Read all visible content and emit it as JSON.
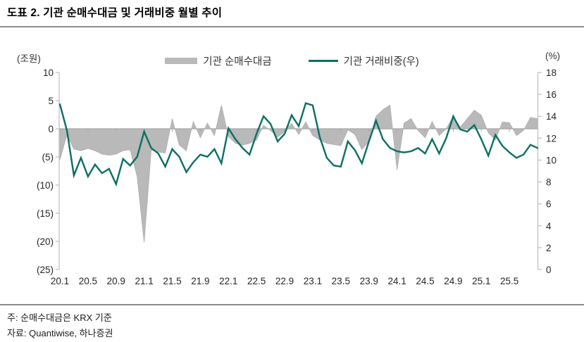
{
  "title": "도표 2. 기관 순매수대금 및 거래비중 월별 추이",
  "legend": {
    "area_label": "기관 순매수대금",
    "line_label": "기관 거래비중(우)"
  },
  "axes": {
    "left_unit": "(조원)",
    "right_unit": "(%)",
    "left_ticks": [
      "10",
      "5",
      "0",
      "(5)",
      "(10)",
      "(15)",
      "(20)",
      "(25)"
    ],
    "left_tick_values": [
      10,
      5,
      0,
      -5,
      -10,
      -15,
      -20,
      -25
    ],
    "right_ticks": [
      "18",
      "16",
      "14",
      "12",
      "10",
      "8",
      "6",
      "4",
      "2",
      "0"
    ],
    "right_tick_values": [
      18,
      16,
      14,
      12,
      10,
      8,
      6,
      4,
      2,
      0
    ],
    "x_labels": [
      {
        "text": "20.1",
        "month_index": 0
      },
      {
        "text": "20.5",
        "month_index": 4
      },
      {
        "text": "20.9",
        "month_index": 8
      },
      {
        "text": "21.1",
        "month_index": 12
      },
      {
        "text": "21.5",
        "month_index": 16
      },
      {
        "text": "21.9",
        "month_index": 20
      },
      {
        "text": "22.1",
        "month_index": 24
      },
      {
        "text": "22.5",
        "month_index": 28
      },
      {
        "text": "22.9",
        "month_index": 32
      },
      {
        "text": "23.1",
        "month_index": 36
      },
      {
        "text": "23.5",
        "month_index": 40
      },
      {
        "text": "23.9",
        "month_index": 44
      },
      {
        "text": "24.1",
        "month_index": 48
      },
      {
        "text": "24.5",
        "month_index": 52
      },
      {
        "text": "24.9",
        "month_index": 56
      },
      {
        "text": "25.1",
        "month_index": 60
      },
      {
        "text": "25.5",
        "month_index": 64
      }
    ]
  },
  "notes": {
    "line1": "주: 순매수대금은 KRX 기준",
    "line2": "자료: Quantiwise, 하나증권"
  },
  "colors": {
    "area": "#b9b9b9",
    "area_edge": "#adadad",
    "line": "#0b6f63",
    "axis": "#bfbfbf",
    "zero_line": "#a6a6a6",
    "tick_text": "#262626"
  },
  "chart_data": {
    "type": "area+line",
    "title": "기관 순매수대금 및 거래비중 월별 추이",
    "x": [
      "20.1",
      "20.2",
      "20.3",
      "20.4",
      "20.5",
      "20.6",
      "20.7",
      "20.8",
      "20.9",
      "20.10",
      "20.11",
      "20.12",
      "21.1",
      "21.2",
      "21.3",
      "21.4",
      "21.5",
      "21.6",
      "21.7",
      "21.8",
      "21.9",
      "21.10",
      "21.11",
      "21.12",
      "22.1",
      "22.2",
      "22.3",
      "22.4",
      "22.5",
      "22.6",
      "22.7",
      "22.8",
      "22.9",
      "22.10",
      "22.11",
      "22.12",
      "23.1",
      "23.2",
      "23.3",
      "23.4",
      "23.5",
      "23.6",
      "23.7",
      "23.8",
      "23.9",
      "23.10",
      "23.11",
      "23.12",
      "24.1",
      "24.2",
      "24.3",
      "24.4",
      "24.5",
      "24.6",
      "24.7",
      "24.8",
      "24.9",
      "24.10",
      "24.11",
      "24.12",
      "25.1",
      "25.2",
      "25.3",
      "25.4",
      "25.5",
      "25.6",
      "25.7",
      "25.8",
      "25.9"
    ],
    "series": [
      {
        "name": "기관 순매수대금",
        "kind": "area",
        "axis": "left",
        "unit": "조원",
        "values": [
          -5.5,
          -1.1,
          -3.6,
          -3.9,
          -3.5,
          -3.9,
          -4.5,
          -4.7,
          -4.5,
          -3.9,
          -3.7,
          -8.5,
          -20.2,
          -3.8,
          -4.1,
          -4.3,
          1.8,
          -2.9,
          -3.9,
          1.3,
          -1.6,
          1.0,
          -1.2,
          4.2,
          -1.4,
          -2.6,
          -2.9,
          -2.6,
          -2.0,
          0.6,
          -0.3,
          -1.5,
          -0.5,
          1.0,
          -1.0,
          1.2,
          -1.2,
          -2.0,
          -2.6,
          -2.8,
          -3.0,
          -0.2,
          -1.0,
          -3.7,
          -2.2,
          2.2,
          3.4,
          4.2,
          -7.3,
          1.0,
          1.8,
          -0.3,
          -1.6,
          1.3,
          -1.2,
          0.0,
          2.2,
          0.3,
          1.8,
          3.3,
          2.4,
          -0.7,
          -2.0,
          1.2,
          1.1,
          -1.2,
          -0.3,
          2.0,
          1.8
        ]
      },
      {
        "name": "기관 거래비중(우)",
        "kind": "line",
        "axis": "right",
        "unit": "%",
        "values": [
          15.1,
          12.7,
          8.6,
          10.2,
          8.5,
          9.6,
          8.8,
          9.2,
          7.8,
          10.1,
          9.5,
          10.3,
          12.6,
          11.1,
          10.6,
          9.4,
          11.0,
          10.3,
          8.9,
          9.8,
          10.5,
          10.3,
          11.0,
          9.7,
          12.9,
          11.9,
          11.1,
          10.5,
          12.4,
          14.0,
          13.3,
          11.7,
          12.4,
          14.1,
          13.1,
          15.2,
          15.0,
          12.1,
          10.2,
          9.5,
          9.4,
          11.7,
          10.9,
          9.7,
          11.7,
          13.6,
          11.9,
          11.1,
          10.8,
          10.7,
          10.8,
          11.1,
          10.6,
          11.9,
          10.6,
          12.0,
          14.0,
          12.8,
          12.6,
          13.2,
          11.9,
          10.4,
          12.3,
          11.3,
          10.7,
          10.2,
          10.5,
          11.4,
          11.1
        ]
      }
    ],
    "left_axis_range": [
      -25,
      10
    ],
    "right_axis_range": [
      0,
      18
    ],
    "grid": false,
    "legend_position": "top-center"
  }
}
